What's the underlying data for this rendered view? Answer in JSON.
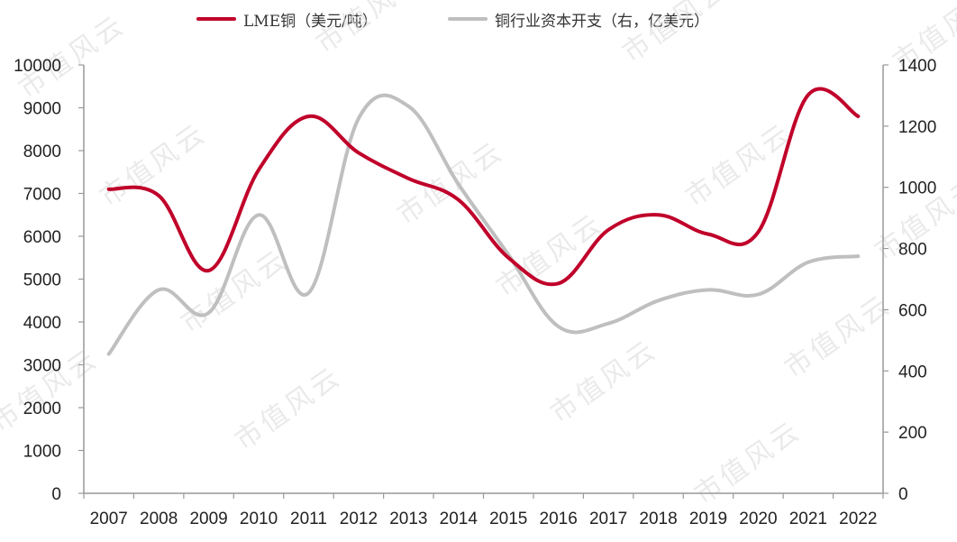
{
  "chart_data": {
    "type": "line",
    "categories": [
      "2007",
      "2008",
      "2009",
      "2010",
      "2011",
      "2012",
      "2013",
      "2014",
      "2015",
      "2016",
      "2017",
      "2018",
      "2019",
      "2020",
      "2021",
      "2022"
    ],
    "series": [
      {
        "name": "LME铜（美元/吨）",
        "axis": "left",
        "color": "#c0002a",
        "values": [
          7100,
          6950,
          5200,
          7550,
          8800,
          7950,
          7350,
          6850,
          5500,
          4900,
          6150,
          6500,
          6050,
          6100,
          9300,
          8800
        ]
      },
      {
        "name": "铜行业资本开支（右，亿美元）",
        "axis": "right",
        "color": "#bfbfbf",
        "values": [
          455,
          665,
          590,
          910,
          655,
          1225,
          1265,
          1010,
          780,
          545,
          555,
          630,
          665,
          650,
          755,
          775
        ]
      }
    ],
    "y_left": {
      "ylim": [
        0,
        10000
      ],
      "ticks": [
        "0",
        "1000",
        "2000",
        "3000",
        "4000",
        "5000",
        "6000",
        "7000",
        "8000",
        "9000",
        "10000"
      ]
    },
    "y_right": {
      "ylim": [
        0,
        1400
      ],
      "ticks": [
        "0",
        "200",
        "400",
        "600",
        "800",
        "1000",
        "1200",
        "1400"
      ]
    },
    "legend_position": "top",
    "grid": false
  },
  "watermark": "市值风云"
}
